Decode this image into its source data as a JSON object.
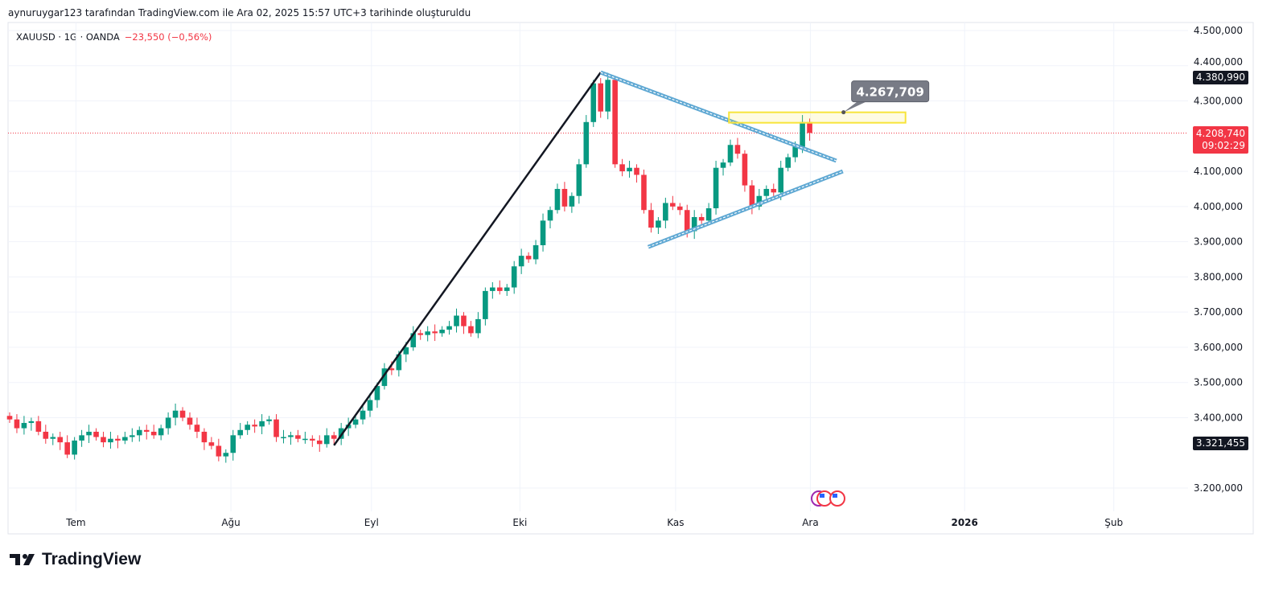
{
  "header": {
    "credit": "aynuruygar123 tarafından TradingView.com ile Ara 02, 2025 15:57 UTC+3 tarihinde oluşturuldu",
    "symbol": "XAUUSD · 1G · OANDA",
    "change": "−23,550 (−0,56%)"
  },
  "brand": {
    "name": "TradingView"
  },
  "colors": {
    "up": "#089981",
    "down": "#f23645",
    "trend": "#131722",
    "channel": "#5fa8d3",
    "zone": "#f7e43b",
    "callout": "#787b86"
  },
  "chart_data": {
    "type": "candlestick",
    "title": "XAUUSD · 1G · OANDA",
    "ylim": [
      3200,
      4500
    ],
    "y_ticks": [
      {
        "value": 4500,
        "label": "4.500,000"
      },
      {
        "value": 4400,
        "label": "4.400,000"
      },
      {
        "value": 4300,
        "label": "4.300,000"
      },
      {
        "value": 4100,
        "label": "4.100,000"
      },
      {
        "value": 4000,
        "label": "4.000,000"
      },
      {
        "value": 3900,
        "label": "3.900,000"
      },
      {
        "value": 3800,
        "label": "3.800,000"
      },
      {
        "value": 3700,
        "label": "3.700,000"
      },
      {
        "value": 3600,
        "label": "3.600,000"
      },
      {
        "value": 3500,
        "label": "3.500,000"
      },
      {
        "value": 3400,
        "label": "3.400,000"
      },
      {
        "value": 3200,
        "label": "3.200,000"
      }
    ],
    "x_ticks": [
      {
        "bar": 9.2,
        "label": "Tem"
      },
      {
        "bar": 30.7,
        "label": "Ağu"
      },
      {
        "bar": 50.2,
        "label": "Eyl"
      },
      {
        "bar": 70.8,
        "label": "Eki"
      },
      {
        "bar": 92.4,
        "label": "Kas"
      },
      {
        "bar": 111.1,
        "label": "Ara"
      },
      {
        "bar": 132.5,
        "label": "2026"
      },
      {
        "bar": 153.2,
        "label": "Şub"
      }
    ],
    "closes": [
      3395,
      3370,
      3385,
      3390,
      3360,
      3340,
      3345,
      3330,
      3295,
      3335,
      3350,
      3360,
      3345,
      3330,
      3340,
      3335,
      3345,
      3350,
      3365,
      3360,
      3350,
      3370,
      3400,
      3420,
      3400,
      3380,
      3360,
      3330,
      3320,
      3290,
      3300,
      3350,
      3365,
      3380,
      3375,
      3390,
      3395,
      3345,
      3345,
      3350,
      3340,
      3340,
      3335,
      3325,
      3350,
      3340,
      3370,
      3380,
      3395,
      3420,
      3450,
      3490,
      3540,
      3535,
      3580,
      3600,
      3640,
      3635,
      3645,
      3640,
      3650,
      3660,
      3690,
      3660,
      3640,
      3680,
      3760,
      3770,
      3760,
      3770,
      3830,
      3860,
      3850,
      3890,
      3960,
      3990,
      4050,
      4000,
      4030,
      4120,
      4240,
      4350,
      4270,
      4360,
      4120,
      4100,
      4110,
      4090,
      3990,
      3940,
      3960,
      4010,
      4000,
      3990,
      3930,
      3970,
      3960,
      3995,
      4110,
      4125,
      4175,
      4150,
      4060,
      4000,
      4030,
      4050,
      4040,
      4110,
      4140,
      4170,
      4240,
      4209
    ],
    "price_labels": {
      "high": {
        "value": 4380.99,
        "label": "4.380,990"
      },
      "last": {
        "value": 4208.74,
        "label": "4.208,740",
        "countdown": "09:02:29"
      },
      "low_anchor": {
        "value": 3321.455,
        "label": "3.321,455"
      }
    },
    "drawings": {
      "trend_line": {
        "from": [
          45,
          3321.455
        ],
        "to": [
          82,
          4380.99
        ]
      },
      "triangle_upper": {
        "from": [
          82,
          4380.99
        ],
        "to": [
          114.7,
          4130
        ]
      },
      "triangle_lower": {
        "from": [
          88.6,
          3885
        ],
        "to": [
          115.6,
          4100
        ]
      },
      "resistance_zone": {
        "from_bar": 99.8,
        "to_bar": 124.3,
        "top": 4267.7,
        "bottom": 4238
      },
      "callout": {
        "bar": 115.7,
        "price": 4267.709,
        "label": "4.267,709"
      }
    }
  }
}
